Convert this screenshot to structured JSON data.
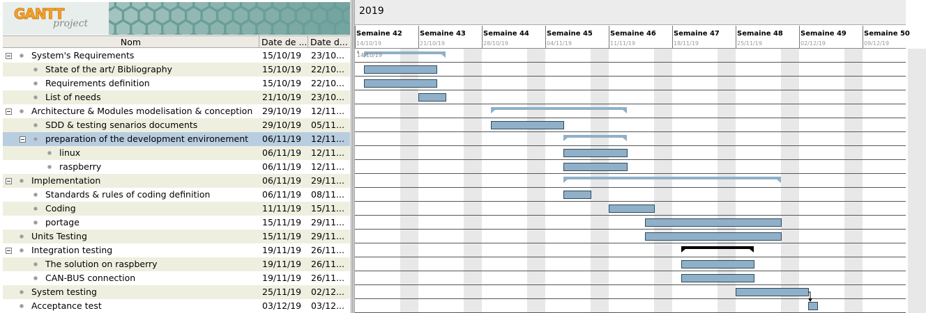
{
  "logo": {
    "name": "GANTT",
    "sub": "project"
  },
  "columns": {
    "name": "Nom",
    "start": "Date de ...",
    "end": "Date d..."
  },
  "timeline": {
    "year": "2019",
    "weeks": [
      {
        "label": "Semaine 42",
        "date": "14/10/19"
      },
      {
        "label": "Semaine 43",
        "date": "21/10/19"
      },
      {
        "label": "Semaine 44",
        "date": "28/10/19"
      },
      {
        "label": "Semaine 45",
        "date": "04/11/19"
      },
      {
        "label": "Semaine 46",
        "date": "11/11/19"
      },
      {
        "label": "Semaine 47",
        "date": "18/11/19"
      },
      {
        "label": "Semaine 48",
        "date": "25/11/19"
      },
      {
        "label": "Semaine 49",
        "date": "02/12/19"
      },
      {
        "label": "Semaine 50",
        "date": "09/12/19"
      }
    ],
    "today_marker": "14/10/19"
  },
  "tasks": [
    {
      "name": "System's Requirements",
      "start": "15/10/19",
      "end": "23/10...",
      "level": 0,
      "group": true,
      "s": "2019-10-15",
      "e": "2019-10-24"
    },
    {
      "name": "State of the art/ Bibliography",
      "start": "15/10/19",
      "end": "22/10...",
      "level": 1,
      "group": false,
      "s": "2019-10-15",
      "e": "2019-10-23"
    },
    {
      "name": "Requirements definition",
      "start": "15/10/19",
      "end": "22/10...",
      "level": 1,
      "group": false,
      "s": "2019-10-15",
      "e": "2019-10-23"
    },
    {
      "name": "List of needs",
      "start": "21/10/19",
      "end": "23/10...",
      "level": 1,
      "group": false,
      "s": "2019-10-21",
      "e": "2019-10-24"
    },
    {
      "name": "Architecture & Modules modelisation & conception",
      "start": "29/10/19",
      "end": "12/11...",
      "level": 0,
      "group": true,
      "s": "2019-10-29",
      "e": "2019-11-13"
    },
    {
      "name": "SDD & testing senarios documents",
      "start": "29/10/19",
      "end": "05/11...",
      "level": 1,
      "group": false,
      "s": "2019-10-29",
      "e": "2019-11-06"
    },
    {
      "name": "preparation of the development environement",
      "start": "06/11/19",
      "end": "12/11...",
      "level": 1,
      "group": true,
      "selected": true,
      "s": "2019-11-06",
      "e": "2019-11-13"
    },
    {
      "name": "linux",
      "start": "06/11/19",
      "end": "12/11...",
      "level": 2,
      "group": false,
      "s": "2019-11-06",
      "e": "2019-11-13"
    },
    {
      "name": "raspberry",
      "start": "06/11/19",
      "end": "12/11...",
      "level": 2,
      "group": false,
      "s": "2019-11-06",
      "e": "2019-11-13"
    },
    {
      "name": "Implementation",
      "start": "06/11/19",
      "end": "29/11...",
      "level": 0,
      "group": true,
      "s": "2019-11-06",
      "e": "2019-11-30"
    },
    {
      "name": "Standards & rules of coding definition",
      "start": "06/11/19",
      "end": "08/11...",
      "level": 1,
      "group": false,
      "s": "2019-11-06",
      "e": "2019-11-09"
    },
    {
      "name": "Coding",
      "start": "11/11/19",
      "end": "15/11...",
      "level": 1,
      "group": false,
      "s": "2019-11-11",
      "e": "2019-11-16"
    },
    {
      "name": "portage",
      "start": "15/11/19",
      "end": "29/11...",
      "level": 1,
      "group": false,
      "s": "2019-11-15",
      "e": "2019-11-30"
    },
    {
      "name": "Units Testing",
      "start": "15/11/19",
      "end": "29/11...",
      "level": 0,
      "group": false,
      "s": "2019-11-15",
      "e": "2019-11-30"
    },
    {
      "name": "Integration testing",
      "start": "19/11/19",
      "end": "26/11...",
      "level": 0,
      "group": true,
      "black": true,
      "s": "2019-11-19",
      "e": "2019-11-27"
    },
    {
      "name": "The solution on raspberry",
      "start": "19/11/19",
      "end": "26/11...",
      "level": 1,
      "group": false,
      "s": "2019-11-19",
      "e": "2019-11-27"
    },
    {
      "name": "CAN-BUS connection",
      "start": "19/11/19",
      "end": "26/11...",
      "level": 1,
      "group": false,
      "s": "2019-11-19",
      "e": "2019-11-27"
    },
    {
      "name": "System testing",
      "start": "25/11/19",
      "end": "02/12...",
      "level": 0,
      "group": false,
      "s": "2019-11-25",
      "e": "2019-12-03"
    },
    {
      "name": "Acceptance test",
      "start": "03/12/19",
      "end": "03/12...",
      "level": 0,
      "group": false,
      "s": "2019-12-03",
      "e": "2019-12-04"
    }
  ],
  "colors": {
    "bar": "#8fb0c8",
    "bar_border": "#2c4a5c",
    "summary": "#8fb0c8",
    "summary_black": "#000000",
    "weekend": "#e8e8e8"
  }
}
